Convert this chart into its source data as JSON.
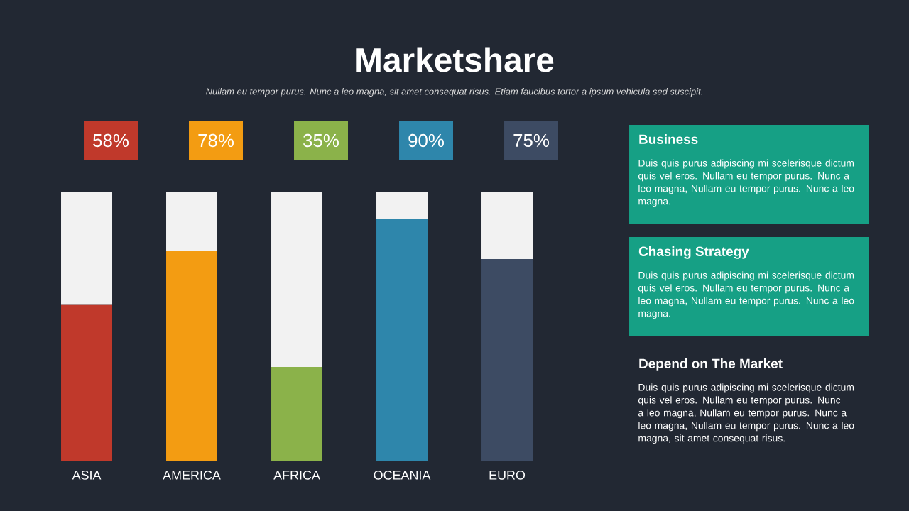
{
  "chart_data": [
    {
      "type": "bar",
      "title": "Marketshare",
      "subtitle": "Nullam eu tempor purus. Nunc a leo magna, sit amet consequat risus. Etiam faucibus tortor a ipsum vehicula sed suscipit.",
      "categories": [
        "ASIA",
        "AMERICA",
        "AFRICA",
        "OCEANIA",
        "EURO"
      ],
      "stacked": true,
      "ylim": [
        0,
        100
      ],
      "tick_labels": "x",
      "series": [
        {
          "colors": [
            "#c0392b",
            "#f39c12",
            "#8bb24a",
            "#2e86ab",
            "#3d4b63"
          ],
          "values": [
            58,
            78,
            35,
            90,
            75
          ],
          "value_labels": [
            "58%",
            "78%",
            "35%",
            "90%",
            "75%"
          ]
        },
        {
          "color": "#f2f2f2",
          "values": [
            42,
            22,
            65,
            10,
            25
          ]
        }
      ]
    },
    {
      "type": "other",
      "annotations": [
        "Business",
        "Duis quis purus adipiscing mi scelerisque dictum quis vel eros. Nullam eu tempor purus. Nunc a leo magna, Nullam eu tempor purus. Nunc a leo magna.",
        "Chasing Strategy",
        "Duis quis purus adipiscing mi scelerisque dictum quis vel eros. Nullam eu tempor purus. Nunc a leo magna, Nullam eu tempor purus. Nunc a leo magna.",
        "Depend on The Market",
        "Duis quis purus adipiscing mi scelerisque dictum quis vel eros. Nullam eu tempor purus. Nunc a leo magna, Nullam eu tempor purus. Nunc a leo magna, Nullam eu tempor purus. Nunc a leo magna, sit amet consequat risus."
      ]
    }
  ]
}
